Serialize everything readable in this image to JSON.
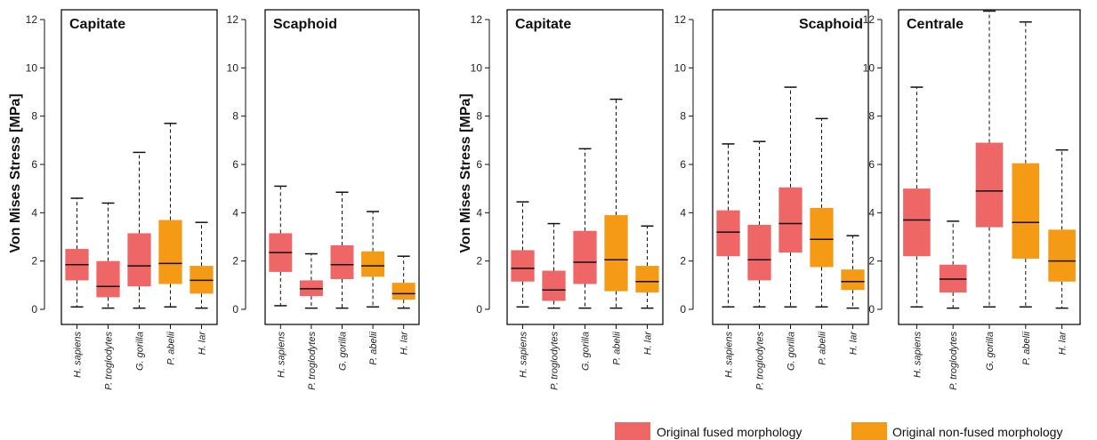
{
  "colors": {
    "fused": "#ee6666",
    "nonfused": "#f59a14"
  },
  "legend": [
    {
      "label": "Original fused morphology",
      "color": "#ee6666"
    },
    {
      "label": "Original non-fused morphology",
      "color": "#f59a14"
    }
  ],
  "chart_data": [
    {
      "type": "box",
      "title": "Capitate",
      "title_align": "left",
      "ylabel": "Von Mises Stress [MPa]",
      "ylim": [
        0,
        12
      ],
      "yticks": [
        0,
        2,
        4,
        6,
        8,
        10,
        12
      ],
      "categories": [
        "H. sapiens",
        "P. troglodytes",
        "G. gorilla",
        "P. abelii",
        "H. lar"
      ],
      "groups": [
        "fused",
        "fused",
        "fused",
        "nonfused",
        "nonfused"
      ],
      "boxes": [
        {
          "min": 0.1,
          "q1": 1.2,
          "median": 1.85,
          "q3": 2.5,
          "max": 4.6
        },
        {
          "min": 0.05,
          "q1": 0.5,
          "median": 0.95,
          "q3": 2.0,
          "max": 4.4
        },
        {
          "min": 0.05,
          "q1": 0.95,
          "median": 1.8,
          "q3": 3.15,
          "max": 6.5
        },
        {
          "min": 0.1,
          "q1": 1.05,
          "median": 1.9,
          "q3": 3.7,
          "max": 7.7
        },
        {
          "min": 0.05,
          "q1": 0.65,
          "median": 1.2,
          "q3": 1.8,
          "max": 3.6
        }
      ]
    },
    {
      "type": "box",
      "title": "Scaphoid",
      "title_align": "left",
      "ylabel": "",
      "ylim": [
        0,
        12
      ],
      "yticks": [
        0,
        2,
        4,
        6,
        8,
        10,
        12
      ],
      "categories": [
        "H. sapiens",
        "P. troglodytes",
        "G. gorilla",
        "P. abelii",
        "H. lar"
      ],
      "groups": [
        "fused",
        "fused",
        "fused",
        "nonfused",
        "nonfused"
      ],
      "boxes": [
        {
          "min": 0.15,
          "q1": 1.55,
          "median": 2.35,
          "q3": 3.15,
          "max": 5.1
        },
        {
          "min": 0.05,
          "q1": 0.55,
          "median": 0.85,
          "q3": 1.2,
          "max": 2.3
        },
        {
          "min": 0.05,
          "q1": 1.25,
          "median": 1.85,
          "q3": 2.65,
          "max": 4.85
        },
        {
          "min": 0.1,
          "q1": 1.35,
          "median": 1.8,
          "q3": 2.4,
          "max": 4.05
        },
        {
          "min": 0.05,
          "q1": 0.4,
          "median": 0.65,
          "q3": 1.1,
          "max": 2.2
        }
      ]
    },
    {
      "type": "box",
      "title": "Capitate",
      "title_align": "left",
      "ylabel": "Von Mises Stress [MPa]",
      "ylim": [
        0,
        12
      ],
      "yticks": [
        0,
        2,
        4,
        6,
        8,
        10,
        12
      ],
      "categories": [
        "H. sapiens",
        "P. troglodytes",
        "G. gorilla",
        "P. abelii",
        "H. lar"
      ],
      "groups": [
        "fused",
        "fused",
        "fused",
        "nonfused",
        "nonfused"
      ],
      "boxes": [
        {
          "min": 0.1,
          "q1": 1.15,
          "median": 1.7,
          "q3": 2.45,
          "max": 4.45
        },
        {
          "min": 0.05,
          "q1": 0.35,
          "median": 0.8,
          "q3": 1.6,
          "max": 3.55
        },
        {
          "min": 0.05,
          "q1": 1.05,
          "median": 1.95,
          "q3": 3.25,
          "max": 6.65
        },
        {
          "min": 0.05,
          "q1": 0.75,
          "median": 2.05,
          "q3": 3.9,
          "max": 8.7
        },
        {
          "min": 0.05,
          "q1": 0.7,
          "median": 1.15,
          "q3": 1.8,
          "max": 3.45
        }
      ]
    },
    {
      "type": "box",
      "title": "Scaphoid",
      "title_align": "right",
      "ylabel": "",
      "ylim": [
        0,
        12
      ],
      "yticks": [
        0,
        2,
        4,
        6,
        8,
        10,
        12
      ],
      "categories": [
        "H. sapiens",
        "P. troglodytes",
        "G. gorilla",
        "P. abelii",
        "H. lar"
      ],
      "groups": [
        "fused",
        "fused",
        "fused",
        "nonfused",
        "nonfused"
      ],
      "boxes": [
        {
          "min": 0.1,
          "q1": 2.2,
          "median": 3.2,
          "q3": 4.1,
          "max": 6.85
        },
        {
          "min": 0.1,
          "q1": 1.2,
          "median": 2.05,
          "q3": 3.5,
          "max": 6.95
        },
        {
          "min": 0.1,
          "q1": 2.35,
          "median": 3.55,
          "q3": 5.05,
          "max": 9.2
        },
        {
          "min": 0.1,
          "q1": 1.75,
          "median": 2.9,
          "q3": 4.2,
          "max": 7.9
        },
        {
          "min": 0.05,
          "q1": 0.8,
          "median": 1.15,
          "q3": 1.65,
          "max": 3.05
        }
      ]
    },
    {
      "type": "box",
      "title": "Centrale",
      "title_align": "left",
      "ylabel": "",
      "ylim": [
        0,
        12
      ],
      "yticks": [
        0,
        2,
        4,
        6,
        8,
        10,
        12
      ],
      "categories": [
        "H. sapiens",
        "P. troglodytes",
        "G. gorilla",
        "P. abelii",
        "H. lar"
      ],
      "groups": [
        "fused",
        "fused",
        "fused",
        "nonfused",
        "nonfused"
      ],
      "boxes": [
        {
          "min": 0.1,
          "q1": 2.2,
          "median": 3.7,
          "q3": 5.0,
          "max": 9.2
        },
        {
          "min": 0.05,
          "q1": 0.7,
          "median": 1.25,
          "q3": 1.85,
          "max": 3.65
        },
        {
          "min": 0.1,
          "q1": 3.4,
          "median": 4.9,
          "q3": 6.9,
          "max": 12.35
        },
        {
          "min": 0.1,
          "q1": 2.1,
          "median": 3.6,
          "q3": 6.05,
          "max": 11.9
        },
        {
          "min": 0.05,
          "q1": 1.15,
          "median": 2.0,
          "q3": 3.3,
          "max": 6.6
        }
      ]
    }
  ]
}
